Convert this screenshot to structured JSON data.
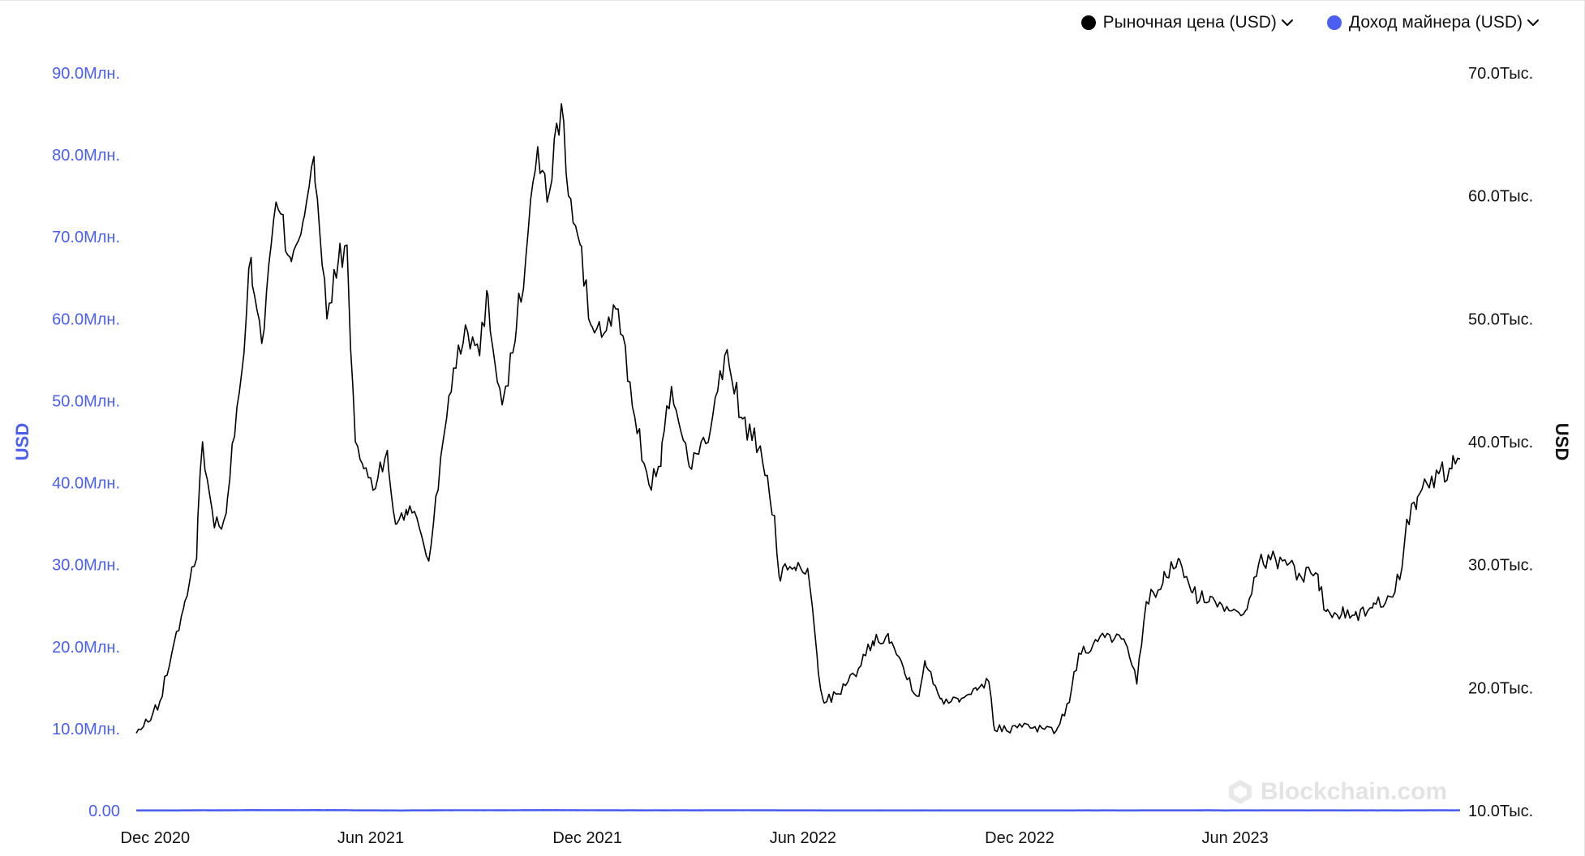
{
  "legend": {
    "price_label": "Рыночная цена (USD)",
    "revenue_label": "Доход майнера (USD)"
  },
  "watermark": "Blockchain.com",
  "colors": {
    "price": "#000000",
    "revenue": "#4a5ef0"
  },
  "chart_data": {
    "type": "line",
    "x_ticks": [
      "Dec 2020",
      "Jun 2021",
      "Dec 2021",
      "Jun 2022",
      "Dec 2022",
      "Jun 2023"
    ],
    "left_axis": {
      "title": "USD",
      "ticks": [
        "0.00",
        "10.0Млн.",
        "20.0Млн.",
        "30.0Млн.",
        "40.0Млн.",
        "50.0Млн.",
        "60.0Млн.",
        "70.0Млн.",
        "80.0Млн.",
        "90.0Млн."
      ],
      "range": [
        0,
        90000000
      ]
    },
    "right_axis": {
      "title": "USD",
      "ticks": [
        "10.0Тыс.",
        "20.0Тыс.",
        "30.0Тыс.",
        "40.0Тыс.",
        "50.0Тыс.",
        "60.0Тыс.",
        "70.0Тыс."
      ],
      "range": [
        10000,
        70000
      ]
    },
    "x_range": [
      "2020-11-15",
      "2023-12-08"
    ],
    "series": [
      {
        "name": "Рыночная цена (USD)",
        "axis": "right",
        "x": [
          "2020-11-15",
          "2020-11-25",
          "2020-12-05",
          "2020-12-15",
          "2020-12-25",
          "2021-01-05",
          "2021-01-10",
          "2021-01-20",
          "2021-01-30",
          "2021-02-10",
          "2021-02-20",
          "2021-03-01",
          "2021-03-13",
          "2021-03-25",
          "2021-04-05",
          "2021-04-14",
          "2021-04-25",
          "2021-05-05",
          "2021-05-12",
          "2021-05-19",
          "2021-05-25",
          "2021-06-05",
          "2021-06-15",
          "2021-06-22",
          "2021-07-01",
          "2021-07-10",
          "2021-07-20",
          "2021-08-01",
          "2021-08-10",
          "2021-08-20",
          "2021-09-01",
          "2021-09-07",
          "2021-09-20",
          "2021-10-01",
          "2021-10-10",
          "2021-10-20",
          "2021-10-28",
          "2021-11-09",
          "2021-11-15",
          "2021-11-25",
          "2021-12-04",
          "2021-12-15",
          "2021-12-27",
          "2022-01-10",
          "2022-01-22",
          "2022-02-01",
          "2022-02-10",
          "2022-02-24",
          "2022-03-05",
          "2022-03-15",
          "2022-03-29",
          "2022-04-10",
          "2022-04-25",
          "2022-05-08",
          "2022-05-12",
          "2022-05-25",
          "2022-06-05",
          "2022-06-13",
          "2022-06-18",
          "2022-07-01",
          "2022-07-15",
          "2022-07-30",
          "2022-08-12",
          "2022-08-25",
          "2022-09-07",
          "2022-09-12",
          "2022-09-25",
          "2022-10-10",
          "2022-10-25",
          "2022-11-05",
          "2022-11-09",
          "2022-11-20",
          "2022-12-05",
          "2022-12-20",
          "2023-01-01",
          "2023-01-12",
          "2023-01-20",
          "2023-02-01",
          "2023-02-15",
          "2023-03-01",
          "2023-03-10",
          "2023-03-18",
          "2023-04-01",
          "2023-04-14",
          "2023-04-25",
          "2023-05-10",
          "2023-05-25",
          "2023-06-10",
          "2023-06-21",
          "2023-07-01",
          "2023-07-13",
          "2023-07-25",
          "2023-08-10",
          "2023-08-17",
          "2023-08-30",
          "2023-09-10",
          "2023-09-25",
          "2023-10-10",
          "2023-10-20",
          "2023-10-24",
          "2023-11-01",
          "2023-11-10",
          "2023-11-20",
          "2023-12-01",
          "2023-12-04",
          "2023-12-08"
        ],
        "y": [
          16300,
          17200,
          18900,
          22800,
          26500,
          30500,
          40000,
          33000,
          34200,
          44000,
          55000,
          48000,
          59500,
          55000,
          58000,
          63200,
          50000,
          55000,
          56000,
          40000,
          38200,
          36200,
          39300,
          33300,
          34500,
          33800,
          30300,
          40000,
          46000,
          49500,
          47000,
          52300,
          43000,
          48200,
          55000,
          64000,
          59500,
          67500,
          60000,
          56000,
          49500,
          48800,
          50800,
          42000,
          36500,
          38000,
          44500,
          38500,
          39000,
          41000,
          47500,
          42000,
          39500,
          34000,
          29000,
          29800,
          29700,
          22500,
          19000,
          19500,
          21000,
          23800,
          24400,
          21600,
          19300,
          22200,
          19100,
          19100,
          20000,
          20500,
          17000,
          16500,
          17100,
          16700,
          16500,
          18800,
          22800,
          23500,
          24300,
          23500,
          20300,
          27000,
          28500,
          30500,
          27800,
          27000,
          26600,
          26300,
          30100,
          30400,
          30400,
          29300,
          29200,
          26200,
          26000,
          25900,
          26500,
          27400,
          29800,
          33700,
          34500,
          36600,
          37400,
          37800,
          38200,
          38600
        ]
      },
      {
        "name": "Доход майнера (USD)",
        "axis": "left",
        "x": [
          "2020-11-15",
          "2020-11-25",
          "2020-12-10",
          "2020-12-25",
          "2021-01-05",
          "2021-01-10",
          "2021-01-20",
          "2021-02-01",
          "2021-02-10",
          "2021-02-20",
          "2021-03-01",
          "2021-03-13",
          "2021-03-25",
          "2021-04-05",
          "2021-04-14",
          "2021-04-20",
          "2021-05-01",
          "2021-05-10",
          "2021-05-20",
          "2021-06-05",
          "2021-06-15",
          "2021-06-28",
          "2021-07-05",
          "2021-07-20",
          "2021-08-01",
          "2021-08-15",
          "2021-09-01",
          "2021-09-20",
          "2021-10-05",
          "2021-10-20",
          "2021-11-01",
          "2021-11-10",
          "2021-11-25",
          "2021-12-10",
          "2021-12-25",
          "2022-01-10",
          "2022-01-25",
          "2022-02-10",
          "2022-03-01",
          "2022-03-20",
          "2022-04-05",
          "2022-04-20",
          "2022-05-05",
          "2022-05-15",
          "2022-06-01",
          "2022-06-13",
          "2022-06-20",
          "2022-07-10",
          "2022-08-01",
          "2022-08-20",
          "2022-09-10",
          "2022-10-01",
          "2022-10-20",
          "2022-11-05",
          "2022-11-15",
          "2022-12-01",
          "2022-12-20",
          "2023-01-10",
          "2023-01-25",
          "2023-02-10",
          "2023-03-01",
          "2023-03-20",
          "2023-04-01",
          "2023-04-20",
          "2023-05-08",
          "2023-05-20",
          "2023-06-10",
          "2023-06-25",
          "2023-07-10",
          "2023-07-25",
          "2023-08-10",
          "2023-08-25",
          "2023-09-10",
          "2023-09-25",
          "2023-10-10",
          "2023-10-25",
          "2023-11-10",
          "2023-11-20",
          "2023-12-01",
          "2023-12-08"
        ],
        "y": [
          16000,
          19500,
          17500,
          25000,
          35000,
          45000,
          33000,
          31000,
          50000,
          67000,
          55000,
          57000,
          60000,
          58000,
          71000,
          58000,
          60000,
          56000,
          34000,
          26000,
          22000,
          13500,
          27000,
          32000,
          42000,
          48000,
          45000,
          41000,
          52000,
          58000,
          62000,
          55000,
          48000,
          42000,
          39000,
          36000,
          34000,
          40000,
          38000,
          42000,
          40000,
          45000,
          36000,
          30000,
          27000,
          24000,
          21000,
          20500,
          22000,
          24000,
          21500,
          22500,
          20500,
          19000,
          17000,
          17500,
          19000,
          20000,
          25000,
          27000,
          22000,
          28000,
          30000,
          29000,
          38000,
          28000,
          29000,
          27500,
          29500,
          28000,
          26000,
          27000,
          28000,
          26000,
          27500,
          28500,
          31000,
          35000,
          37500,
          43000
        ]
      }
    ]
  }
}
